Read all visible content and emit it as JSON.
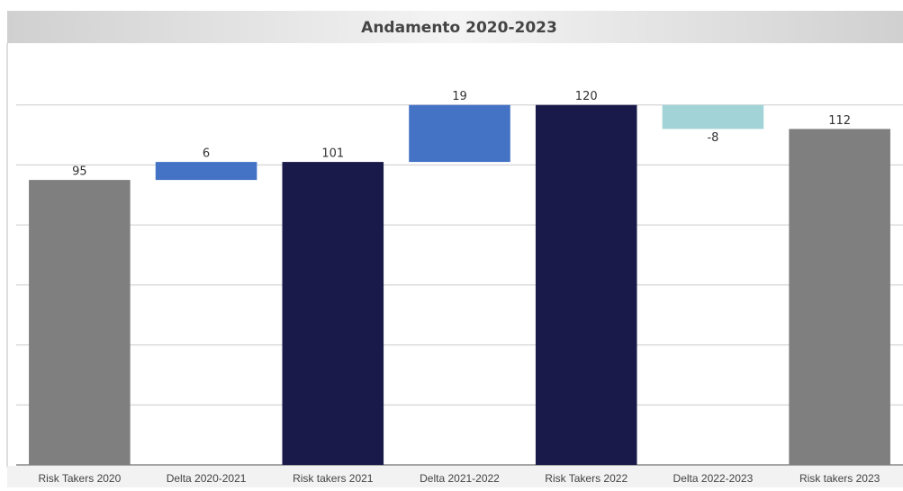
{
  "chart_data": {
    "type": "waterfall",
    "title": "Andamento 2020-2023",
    "categories": [
      "Risk Takers 2020",
      "Delta 2020-2021",
      "Risk takers 2021",
      "Delta 2021-2022",
      "Risk Takers 2022",
      "Delta 2022-2023",
      "Risk takers 2023"
    ],
    "values": [
      95,
      6,
      101,
      19,
      120,
      -8,
      112
    ],
    "measure": [
      "absolute",
      "relative",
      "absolute",
      "relative",
      "absolute",
      "relative",
      "absolute"
    ],
    "colors": [
      "#7f7f7f",
      "#4472c4",
      "#1a1a4a",
      "#4472c4",
      "#1a1a4a",
      "#a2d3d6",
      "#7f7f7f"
    ],
    "ylim": [
      0,
      140
    ],
    "yticks": [
      0,
      20,
      40,
      60,
      80,
      100,
      120
    ],
    "grid": true
  }
}
